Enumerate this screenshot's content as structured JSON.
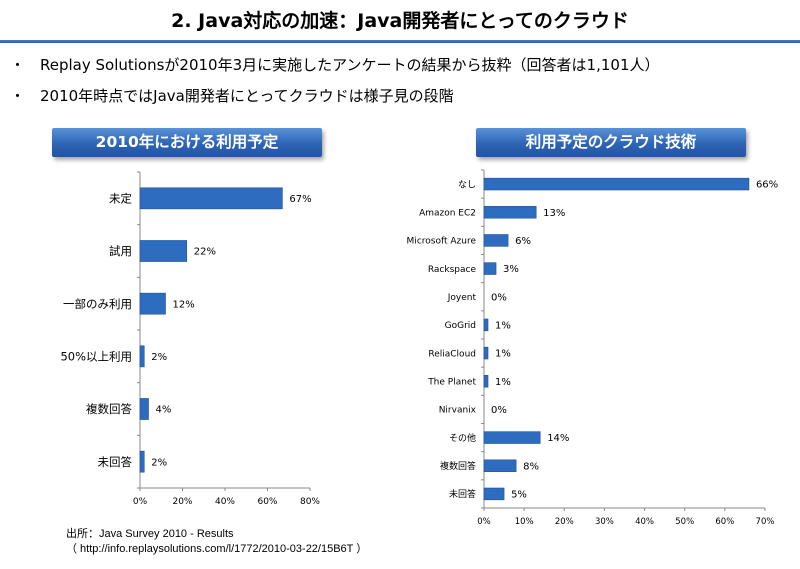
{
  "slide": {
    "title": "2. Java対応の加速：Java開発者にとってのクラウド",
    "bullets": [
      {
        "marker": "・",
        "text": "Replay Solutionsが2010年3月に実施したアンケートの結果から抜粋（回答者は1,101人）"
      },
      {
        "marker": "・",
        "text": "2010年時点ではJava開発者にとってクラウドは様子見の段階"
      }
    ],
    "source_line1": "出所：Java Survey 2010 - Results",
    "source_line2": "（ http://info.replaysolutions.com/l/1772/2010-03-22/15B6T ）"
  },
  "colors": {
    "bar": "#2e6cc0",
    "bar_edge": "#1f4f96",
    "axis": "#888888",
    "header_top": "#5a92d8",
    "header_bottom": "#2355a0"
  },
  "chart_data": [
    {
      "type": "bar",
      "orientation": "horizontal",
      "title": "2010年における利用予定",
      "categories": [
        "未定",
        "試用",
        "一部のみ利用",
        "50%以上利用",
        "複数回答",
        "未回答"
      ],
      "values": [
        67,
        22,
        12,
        2,
        4,
        2
      ],
      "value_labels": [
        "67%",
        "22%",
        "12%",
        "2%",
        "4%",
        "2%"
      ],
      "xlim": [
        0,
        80
      ],
      "x_ticks": [
        0,
        20,
        40,
        60,
        80
      ],
      "x_tick_labels": [
        "0%",
        "20%",
        "40%",
        "60%",
        "80%"
      ],
      "grid": false,
      "legend": "none"
    },
    {
      "type": "bar",
      "orientation": "horizontal",
      "title": "利用予定のクラウド技術",
      "categories": [
        "なし",
        "Amazon EC2",
        "Microsoft Azure",
        "Rackspace",
        "Joyent",
        "GoGrid",
        "ReliaCloud",
        "The Planet",
        "Nirvanix",
        "その他",
        "複数回答",
        "未回答"
      ],
      "values": [
        66,
        13,
        6,
        3,
        0,
        1,
        1,
        1,
        0,
        14,
        8,
        5
      ],
      "value_labels": [
        "66%",
        "13%",
        "6%",
        "3%",
        "0%",
        "1%",
        "1%",
        "1%",
        "0%",
        "14%",
        "8%",
        "5%"
      ],
      "xlim": [
        0,
        70
      ],
      "x_ticks": [
        0,
        10,
        20,
        30,
        40,
        50,
        60,
        70
      ],
      "x_tick_labels": [
        "0%",
        "10%",
        "20%",
        "30%",
        "40%",
        "50%",
        "60%",
        "70%"
      ],
      "grid": false,
      "legend": "none"
    }
  ]
}
